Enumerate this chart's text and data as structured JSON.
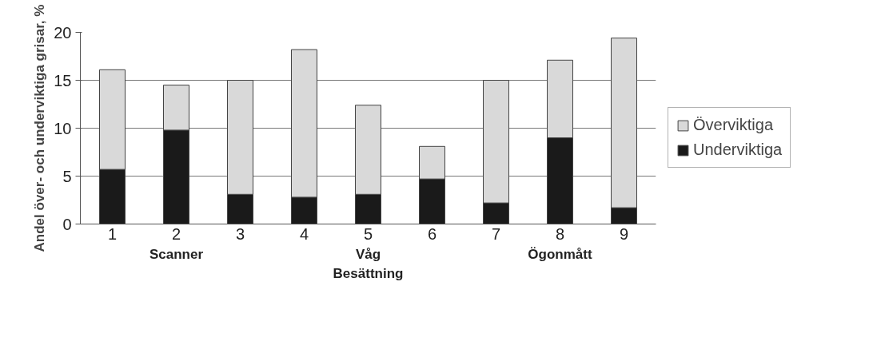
{
  "chart_data": {
    "type": "bar",
    "stacked": true,
    "ylabel": "Andel över- och underviktiga grisar, %",
    "xlabel": "Besättning",
    "categories": [
      "1",
      "2",
      "3",
      "4",
      "5",
      "6",
      "7",
      "8",
      "9"
    ],
    "series": [
      {
        "name": "Underviktiga",
        "color": "#1a1a1a",
        "values": [
          5.7,
          9.8,
          3.1,
          2.8,
          3.1,
          4.7,
          2.2,
          9.0,
          1.7
        ]
      },
      {
        "name": "Överviktiga",
        "color": "#d9d9d9",
        "values": [
          10.4,
          4.7,
          11.9,
          15.4,
          9.3,
          3.4,
          12.8,
          8.1,
          17.7
        ]
      }
    ],
    "annotations": [
      "Scanner",
      "Våg",
      "Ögonmått"
    ],
    "ylim": [
      0,
      20
    ],
    "yticks": [
      0,
      5,
      10,
      15,
      20
    ],
    "grid": "y",
    "legend": "right"
  }
}
